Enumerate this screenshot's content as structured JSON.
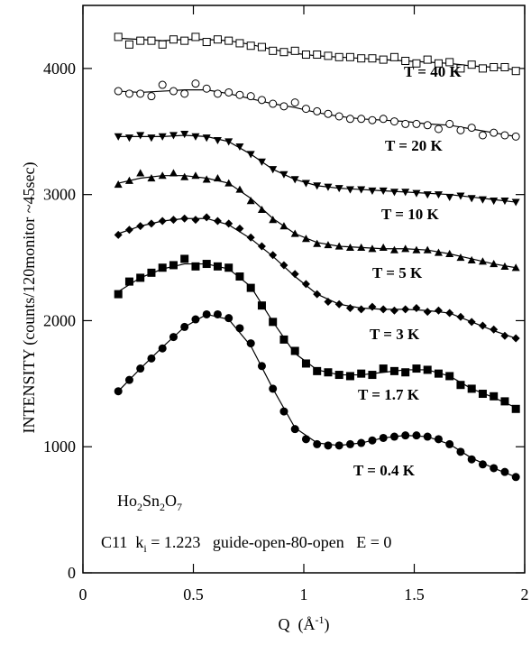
{
  "chart_data": {
    "type": "scatter",
    "x_label": [
      "Q  (Å",
      "-1",
      ")"
    ],
    "y_label": "INTENSITY (counts/120monitor ~45sec)",
    "sample_label": [
      "Ho",
      "2",
      "Sn",
      "2",
      "O",
      "7"
    ],
    "instrument_label": [
      "C11  k",
      "i",
      " = 1.223   guide-open-80-open   E = 0"
    ],
    "xlim": [
      0,
      2
    ],
    "xticks": [
      0,
      0.5,
      1,
      1.5,
      2
    ],
    "ylim": [
      0,
      4500
    ],
    "yticks": [
      0,
      1000,
      2000,
      3000,
      4000
    ],
    "color": "#000000",
    "x": [
      0.16,
      0.21,
      0.26,
      0.31,
      0.36,
      0.41,
      0.46,
      0.51,
      0.56,
      0.61,
      0.66,
      0.71,
      0.76,
      0.81,
      0.86,
      0.91,
      0.96,
      1.01,
      1.06,
      1.11,
      1.16,
      1.21,
      1.26,
      1.31,
      1.36,
      1.41,
      1.46,
      1.51,
      1.56,
      1.61,
      1.66,
      1.71,
      1.76,
      1.81,
      1.86,
      1.91,
      1.96
    ],
    "fit_x": [
      0.16,
      0.26,
      0.36,
      0.46,
      0.56,
      0.66,
      0.76,
      0.86,
      0.96,
      1.06,
      1.16,
      1.26,
      1.36,
      1.46,
      1.56,
      1.66,
      1.76,
      1.86,
      1.96
    ],
    "series": [
      {
        "name": "T = 40 K",
        "marker": "open-square",
        "values": [
          4250,
          4190,
          4220,
          4220,
          4190,
          4230,
          4220,
          4250,
          4210,
          4230,
          4220,
          4200,
          4180,
          4170,
          4140,
          4130,
          4140,
          4110,
          4110,
          4100,
          4090,
          4090,
          4080,
          4080,
          4070,
          4090,
          4060,
          4040,
          4070,
          4040,
          4050,
          4000,
          4030,
          4000,
          4010,
          4010,
          3980
        ],
        "fit": [
          4240,
          4230,
          4220,
          4230,
          4230,
          4220,
          4190,
          4150,
          4120,
          4100,
          4090,
          4080,
          4070,
          4060,
          4050,
          4040,
          4020,
          4010,
          3990
        ]
      },
      {
        "name": "T = 20 K",
        "marker": "open-circle",
        "values": [
          3820,
          3800,
          3800,
          3780,
          3870,
          3820,
          3800,
          3880,
          3840,
          3800,
          3810,
          3790,
          3780,
          3750,
          3720,
          3700,
          3730,
          3680,
          3660,
          3640,
          3620,
          3600,
          3600,
          3590,
          3600,
          3580,
          3560,
          3560,
          3550,
          3520,
          3560,
          3510,
          3530,
          3470,
          3490,
          3470,
          3460
        ],
        "fit": [
          3820,
          3810,
          3820,
          3830,
          3830,
          3800,
          3760,
          3720,
          3690,
          3650,
          3620,
          3600,
          3590,
          3580,
          3560,
          3550,
          3520,
          3490,
          3460
        ]
      },
      {
        "name": "T = 10 K",
        "marker": "triangle-down",
        "values": [
          3460,
          3450,
          3470,
          3450,
          3460,
          3470,
          3480,
          3460,
          3450,
          3430,
          3420,
          3380,
          3320,
          3260,
          3200,
          3160,
          3120,
          3090,
          3070,
          3060,
          3050,
          3040,
          3040,
          3030,
          3030,
          3020,
          3020,
          3010,
          3000,
          3000,
          2980,
          2990,
          2970,
          2960,
          2950,
          2950,
          2940
        ],
        "fit": [
          3460,
          3460,
          3460,
          3470,
          3460,
          3420,
          3320,
          3200,
          3120,
          3070,
          3050,
          3040,
          3030,
          3020,
          3010,
          3000,
          2980,
          2960,
          2940
        ]
      },
      {
        "name": "T = 5 K",
        "marker": "triangle-up",
        "values": [
          3080,
          3110,
          3170,
          3130,
          3150,
          3170,
          3140,
          3150,
          3120,
          3130,
          3090,
          3040,
          2950,
          2880,
          2800,
          2750,
          2690,
          2650,
          2610,
          2600,
          2590,
          2580,
          2580,
          2570,
          2580,
          2560,
          2570,
          2560,
          2560,
          2540,
          2530,
          2500,
          2480,
          2470,
          2450,
          2430,
          2420
        ],
        "fit": [
          3090,
          3130,
          3150,
          3150,
          3130,
          3090,
          2970,
          2810,
          2690,
          2620,
          2590,
          2580,
          2570,
          2570,
          2560,
          2530,
          2490,
          2450,
          2420
        ]
      },
      {
        "name": "T = 3 K",
        "marker": "diamond",
        "values": [
          2680,
          2720,
          2750,
          2770,
          2790,
          2800,
          2810,
          2800,
          2820,
          2790,
          2770,
          2730,
          2660,
          2590,
          2520,
          2440,
          2370,
          2290,
          2210,
          2150,
          2130,
          2100,
          2090,
          2110,
          2090,
          2080,
          2090,
          2100,
          2070,
          2080,
          2060,
          2030,
          1990,
          1960,
          1930,
          1880,
          1860
        ],
        "fit": [
          2690,
          2750,
          2790,
          2810,
          2810,
          2760,
          2650,
          2510,
          2350,
          2210,
          2130,
          2100,
          2090,
          2090,
          2080,
          2060,
          1990,
          1920,
          1860
        ]
      },
      {
        "name": "T = 1.7 K",
        "marker": "square",
        "values": [
          2210,
          2310,
          2340,
          2380,
          2420,
          2440,
          2490,
          2430,
          2450,
          2430,
          2420,
          2350,
          2260,
          2120,
          1990,
          1850,
          1760,
          1660,
          1600,
          1590,
          1570,
          1560,
          1580,
          1570,
          1620,
          1600,
          1590,
          1620,
          1610,
          1580,
          1560,
          1490,
          1460,
          1420,
          1400,
          1360,
          1300
        ],
        "fit": [
          2230,
          2340,
          2410,
          2450,
          2450,
          2410,
          2270,
          1990,
          1740,
          1610,
          1570,
          1570,
          1590,
          1610,
          1610,
          1560,
          1460,
          1390,
          1310
        ]
      },
      {
        "name": "T = 0.4 K",
        "marker": "circle",
        "values": [
          1440,
          1530,
          1620,
          1700,
          1780,
          1870,
          1950,
          2010,
          2050,
          2050,
          2020,
          1940,
          1820,
          1640,
          1460,
          1280,
          1140,
          1060,
          1020,
          1010,
          1010,
          1020,
          1030,
          1050,
          1070,
          1080,
          1090,
          1090,
          1080,
          1060,
          1020,
          960,
          900,
          860,
          830,
          800,
          760
        ],
        "fit": [
          1440,
          1620,
          1790,
          1950,
          2050,
          2010,
          1800,
          1460,
          1150,
          1030,
          1010,
          1030,
          1070,
          1090,
          1080,
          1020,
          910,
          830,
          760
        ]
      }
    ]
  }
}
